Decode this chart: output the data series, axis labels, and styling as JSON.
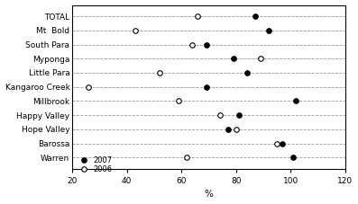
{
  "reservoirs": [
    "TOTAL",
    "Mt  Bold",
    "South Para",
    "Myponga",
    "Little Para",
    "Kangaroo Creek",
    "Millbrook",
    "Happy Valley",
    "Hope Valley",
    "Barossa",
    "Warren"
  ],
  "values_2007": [
    87,
    92,
    69,
    79,
    84,
    69,
    102,
    81,
    77,
    97,
    101
  ],
  "values_2006": [
    66,
    43,
    64,
    89,
    52,
    26,
    59,
    74,
    80,
    95,
    62
  ],
  "xlabel": "%",
  "xlim": [
    20,
    120
  ],
  "xticks": [
    20,
    40,
    60,
    80,
    100,
    120
  ],
  "bg_color": "#ffffff",
  "grid_color": "#999999",
  "marker_size": 4,
  "color_2007": "#000000",
  "color_2006": "#ffffff",
  "legend_2007": "2007",
  "legend_2006": "2006"
}
